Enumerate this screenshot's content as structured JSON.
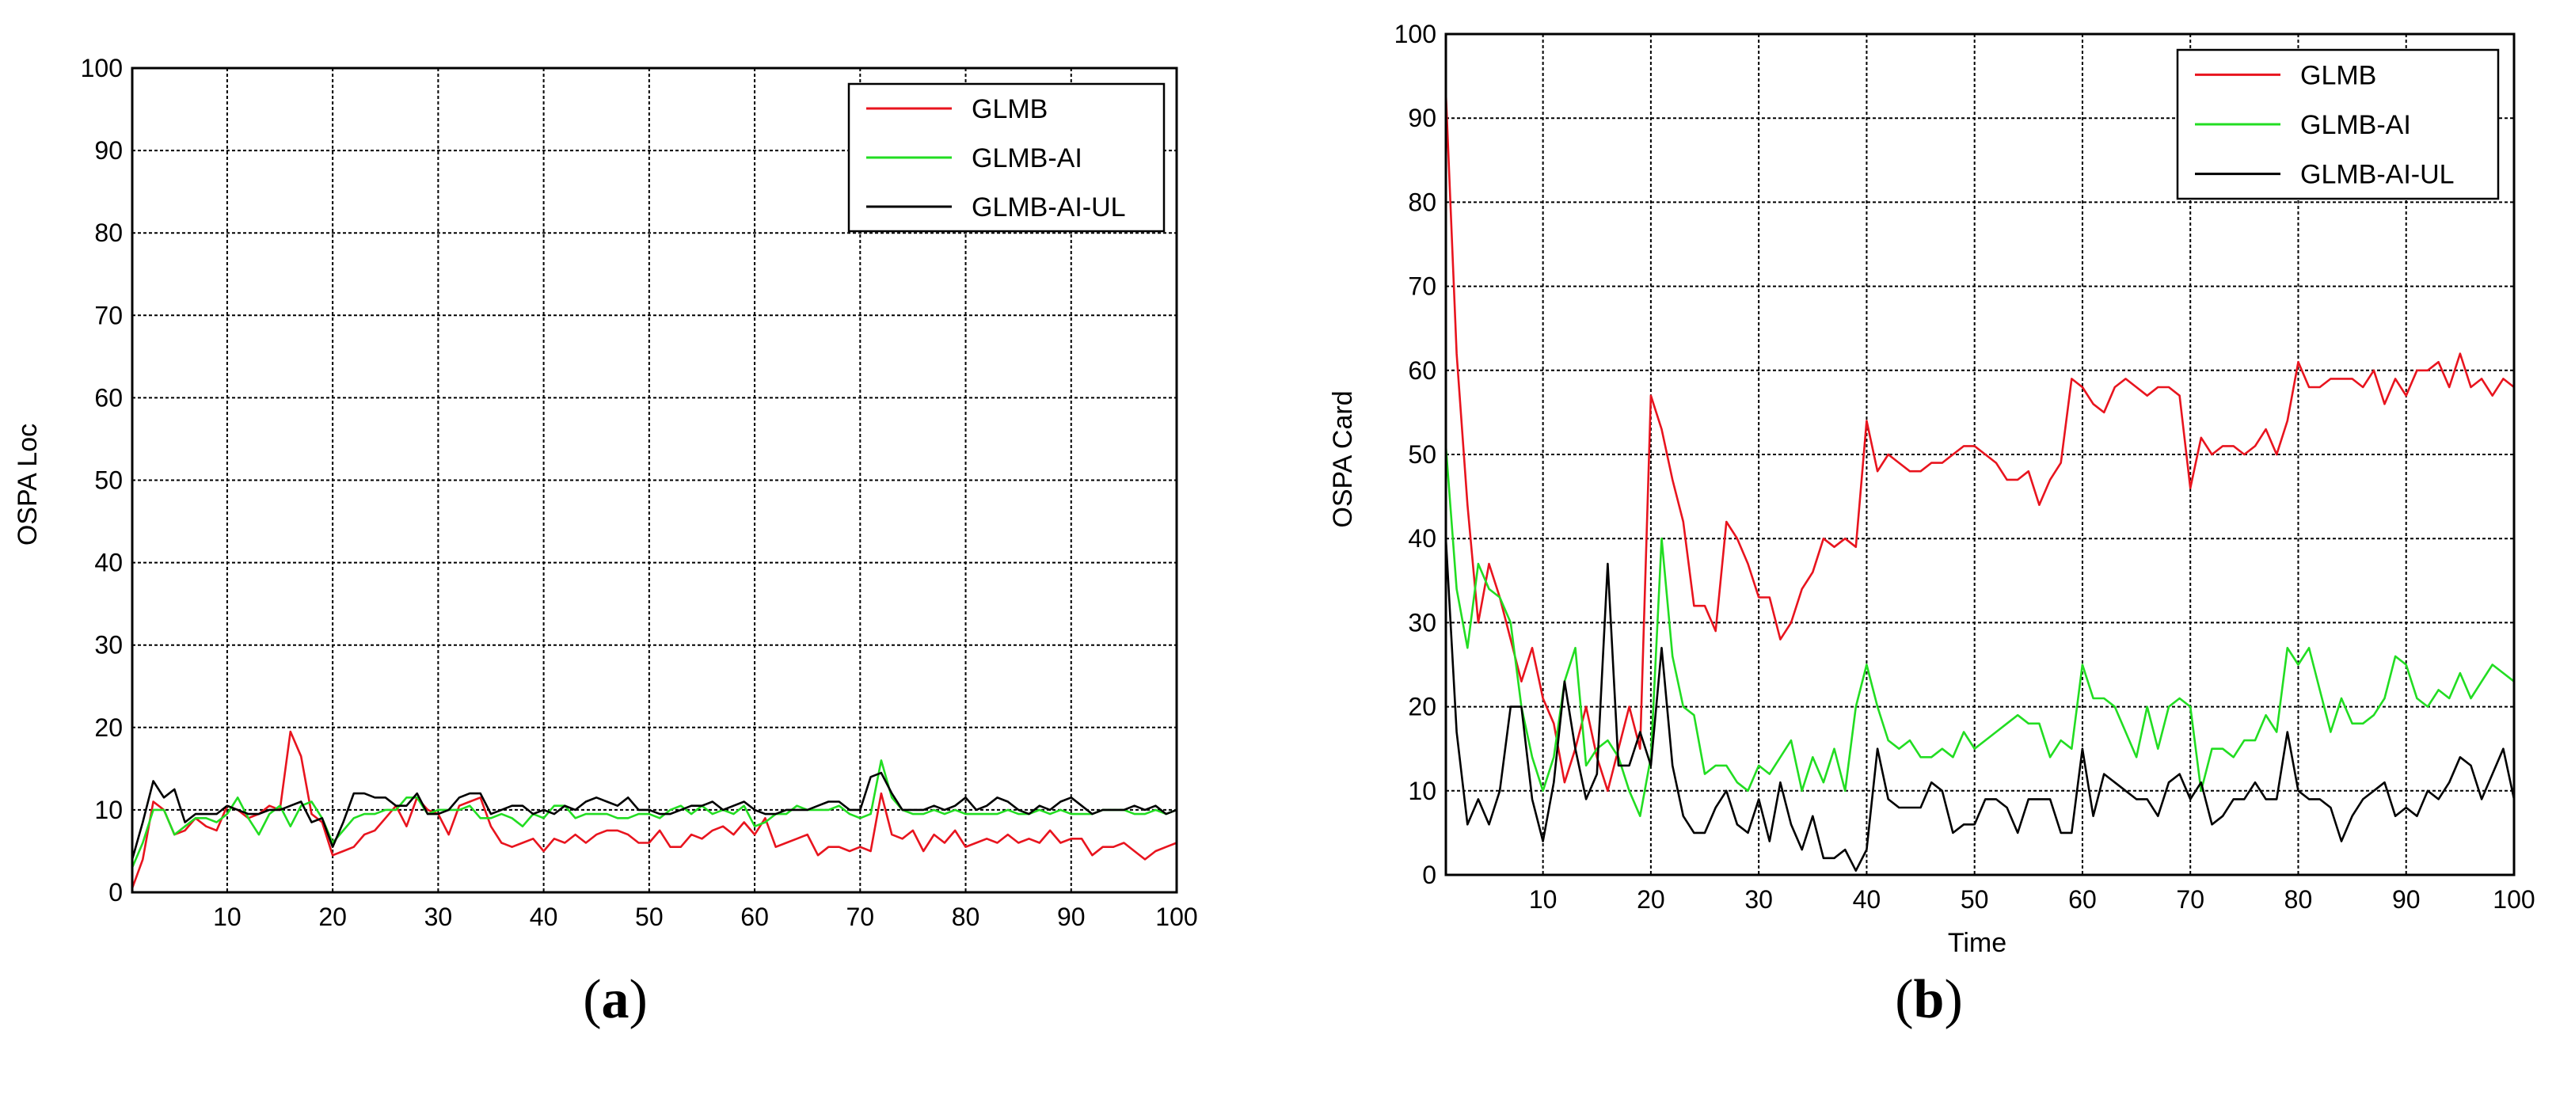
{
  "panels": [
    {
      "letter": "a"
    },
    {
      "letter": "b"
    }
  ],
  "chart_data": [
    {
      "type": "line",
      "xlabel": "",
      "ylabel": "OSPA Loc",
      "xlim": [
        1,
        100
      ],
      "ylim": [
        0,
        100
      ],
      "xticks": [
        10,
        20,
        30,
        40,
        50,
        60,
        70,
        80,
        90,
        100
      ],
      "yticks": [
        0,
        10,
        20,
        30,
        40,
        50,
        60,
        70,
        80,
        90,
        100
      ],
      "grid": true,
      "legend_position": "top-right",
      "series": [
        {
          "name": "GLMB",
          "color": "#e8141e",
          "x_start": 1,
          "values": [
            0.5,
            4,
            11,
            10,
            7,
            7.5,
            9,
            8,
            7.5,
            10.5,
            10,
            9,
            9.5,
            10.5,
            10,
            19.5,
            16.5,
            9.5,
            8.5,
            4.5,
            5,
            5.5,
            7,
            7.5,
            9,
            10.5,
            8,
            11.5,
            10,
            9.5,
            7,
            10.5,
            11,
            11.5,
            8,
            6,
            5.5,
            6,
            6.5,
            5,
            6.5,
            6,
            7,
            6,
            7,
            7.5,
            7.5,
            7,
            6,
            6,
            7.5,
            5.5,
            5.5,
            7,
            6.5,
            7.5,
            8,
            7,
            8.5,
            7,
            9,
            5.5,
            6,
            6.5,
            7,
            4.5,
            5.5,
            5.5,
            5,
            5.5,
            5,
            12,
            7,
            6.5,
            7.5,
            5,
            7,
            6,
            7.5,
            5.5,
            6,
            6.5,
            6,
            7,
            6,
            6.5,
            6,
            7.5,
            6,
            6.5,
            6.5,
            4.5,
            5.5,
            5.5,
            6,
            5,
            4,
            5,
            5.5,
            6
          ]
        },
        {
          "name": "GLMB-AI",
          "color": "#22dd22",
          "x_start": 1,
          "values": [
            3,
            6,
            10,
            10,
            7,
            8,
            9,
            9,
            8.5,
            9.5,
            11.5,
            9,
            7,
            9.5,
            10.5,
            8,
            10.5,
            11,
            9,
            6,
            7.5,
            9,
            9.5,
            9.5,
            10,
            10,
            11.5,
            11.5,
            9.5,
            10,
            10,
            10,
            10.5,
            9,
            9,
            9.5,
            9,
            8,
            9.5,
            9,
            10.5,
            10.5,
            9,
            9.5,
            9.5,
            9.5,
            9,
            9,
            9.5,
            9.5,
            9,
            10,
            10.5,
            9.5,
            10.5,
            9.5,
            10,
            9.5,
            10.5,
            8,
            8.5,
            9.5,
            9.5,
            10.5,
            10,
            10,
            10,
            10.5,
            9.5,
            9,
            9.5,
            16,
            11.5,
            10,
            9.5,
            9.5,
            10,
            9.5,
            10,
            9.5,
            9.5,
            9.5,
            9.5,
            10,
            9.5,
            9.5,
            10,
            9.5,
            10,
            9.5,
            9.5,
            9.5,
            10,
            10,
            10,
            9.5,
            9.5,
            10,
            9.5,
            10
          ]
        },
        {
          "name": "GLMB-AI-UL",
          "color": "#000000",
          "x_start": 1,
          "values": [
            4,
            8.5,
            13.5,
            11.5,
            12.5,
            8.5,
            9.5,
            9.5,
            9.5,
            10.5,
            10,
            9.5,
            9.5,
            10,
            10,
            10.5,
            11,
            8.5,
            9,
            5.5,
            8.5,
            12,
            12,
            11.5,
            11.5,
            10.5,
            10.5,
            12,
            9.5,
            9.5,
            10,
            11.5,
            12,
            12,
            9.5,
            10,
            10.5,
            10.5,
            9.5,
            10,
            9.5,
            10.5,
            10,
            11,
            11.5,
            11,
            10.5,
            11.5,
            10,
            10,
            9.5,
            9.5,
            10,
            10.5,
            10.5,
            11,
            10,
            10.5,
            11,
            10,
            9.5,
            9.5,
            10,
            10,
            10,
            10.5,
            11,
            11,
            10,
            10,
            14,
            14.5,
            12,
            10,
            10,
            10,
            10.5,
            10,
            10.5,
            11.5,
            10,
            10.5,
            11.5,
            11,
            10,
            9.5,
            10.5,
            10,
            11,
            11.5,
            10.5,
            9.5,
            10,
            10,
            10,
            10.5,
            10,
            10.5,
            9.5,
            10
          ]
        }
      ]
    },
    {
      "type": "line",
      "xlabel": "Time",
      "ylabel": "OSPA Card",
      "xlim": [
        1,
        100
      ],
      "ylim": [
        0,
        100
      ],
      "xticks": [
        10,
        20,
        30,
        40,
        50,
        60,
        70,
        80,
        90,
        100
      ],
      "yticks": [
        0,
        10,
        20,
        30,
        40,
        50,
        60,
        70,
        80,
        90,
        100
      ],
      "grid": true,
      "legend_position": "top-right",
      "series": [
        {
          "name": "GLMB",
          "color": "#e8141e",
          "x_start": 1,
          "values": [
            93,
            62,
            44,
            30,
            37,
            33,
            28,
            23,
            27,
            21,
            18,
            11,
            15,
            20,
            14,
            10,
            15,
            20,
            15,
            57,
            53,
            47,
            42,
            32,
            32,
            29,
            42,
            40,
            37,
            33,
            33,
            28,
            30,
            34,
            36,
            40,
            39,
            40,
            39,
            54,
            48,
            50,
            49,
            48,
            48,
            49,
            49,
            50,
            51,
            51,
            50,
            49,
            47,
            47,
            48,
            44,
            47,
            49,
            59,
            58,
            56,
            55,
            58,
            59,
            58,
            57,
            58,
            58,
            57,
            46,
            52,
            50,
            51,
            51,
            50,
            51,
            53,
            50,
            54,
            61,
            58,
            58,
            59,
            59,
            59,
            58,
            60,
            56,
            59,
            57,
            60,
            60,
            61,
            58,
            62,
            58,
            59,
            57,
            59,
            58
          ]
        },
        {
          "name": "GLMB-AI",
          "color": "#22dd22",
          "x_start": 1,
          "values": [
            51,
            34,
            27,
            37,
            34,
            33,
            30,
            20,
            14,
            10,
            14,
            23,
            27,
            13,
            15,
            16,
            14,
            10,
            7,
            14,
            40,
            26,
            20,
            19,
            12,
            13,
            13,
            11,
            10,
            13,
            12,
            14,
            16,
            10,
            14,
            11,
            15,
            10,
            20,
            25,
            20,
            16,
            15,
            16,
            14,
            14,
            15,
            14,
            17,
            15,
            16,
            17,
            18,
            19,
            18,
            18,
            14,
            16,
            15,
            25,
            21,
            21,
            20,
            17,
            14,
            20,
            15,
            20,
            21,
            20,
            10,
            15,
            15,
            14,
            16,
            16,
            19,
            17,
            27,
            25,
            27,
            22,
            17,
            21,
            18,
            18,
            19,
            21,
            26,
            25,
            21,
            20,
            22,
            21,
            24,
            21,
            23,
            25,
            24,
            23
          ]
        },
        {
          "name": "GLMB-AI-UL",
          "color": "#000000",
          "x_start": 1,
          "values": [
            40,
            17,
            6,
            9,
            6,
            10,
            20,
            20,
            9,
            4,
            11,
            23,
            15,
            9,
            12,
            37,
            13,
            13,
            17,
            13,
            27,
            13,
            7,
            5,
            5,
            8,
            10,
            6,
            5,
            9,
            4,
            11,
            6,
            3,
            7,
            2,
            2,
            3,
            0.5,
            3,
            15,
            9,
            8,
            8,
            8,
            11,
            10,
            5,
            6,
            6,
            9,
            9,
            8,
            5,
            9,
            9,
            9,
            5,
            5,
            15,
            7,
            12,
            11,
            10,
            9,
            9,
            7,
            11,
            12,
            9,
            11,
            6,
            7,
            9,
            9,
            11,
            9,
            9,
            17,
            10,
            9,
            9,
            8,
            4,
            7,
            9,
            10,
            11,
            7,
            8,
            7,
            10,
            9,
            11,
            14,
            13,
            9,
            12,
            15,
            9
          ]
        }
      ]
    }
  ]
}
